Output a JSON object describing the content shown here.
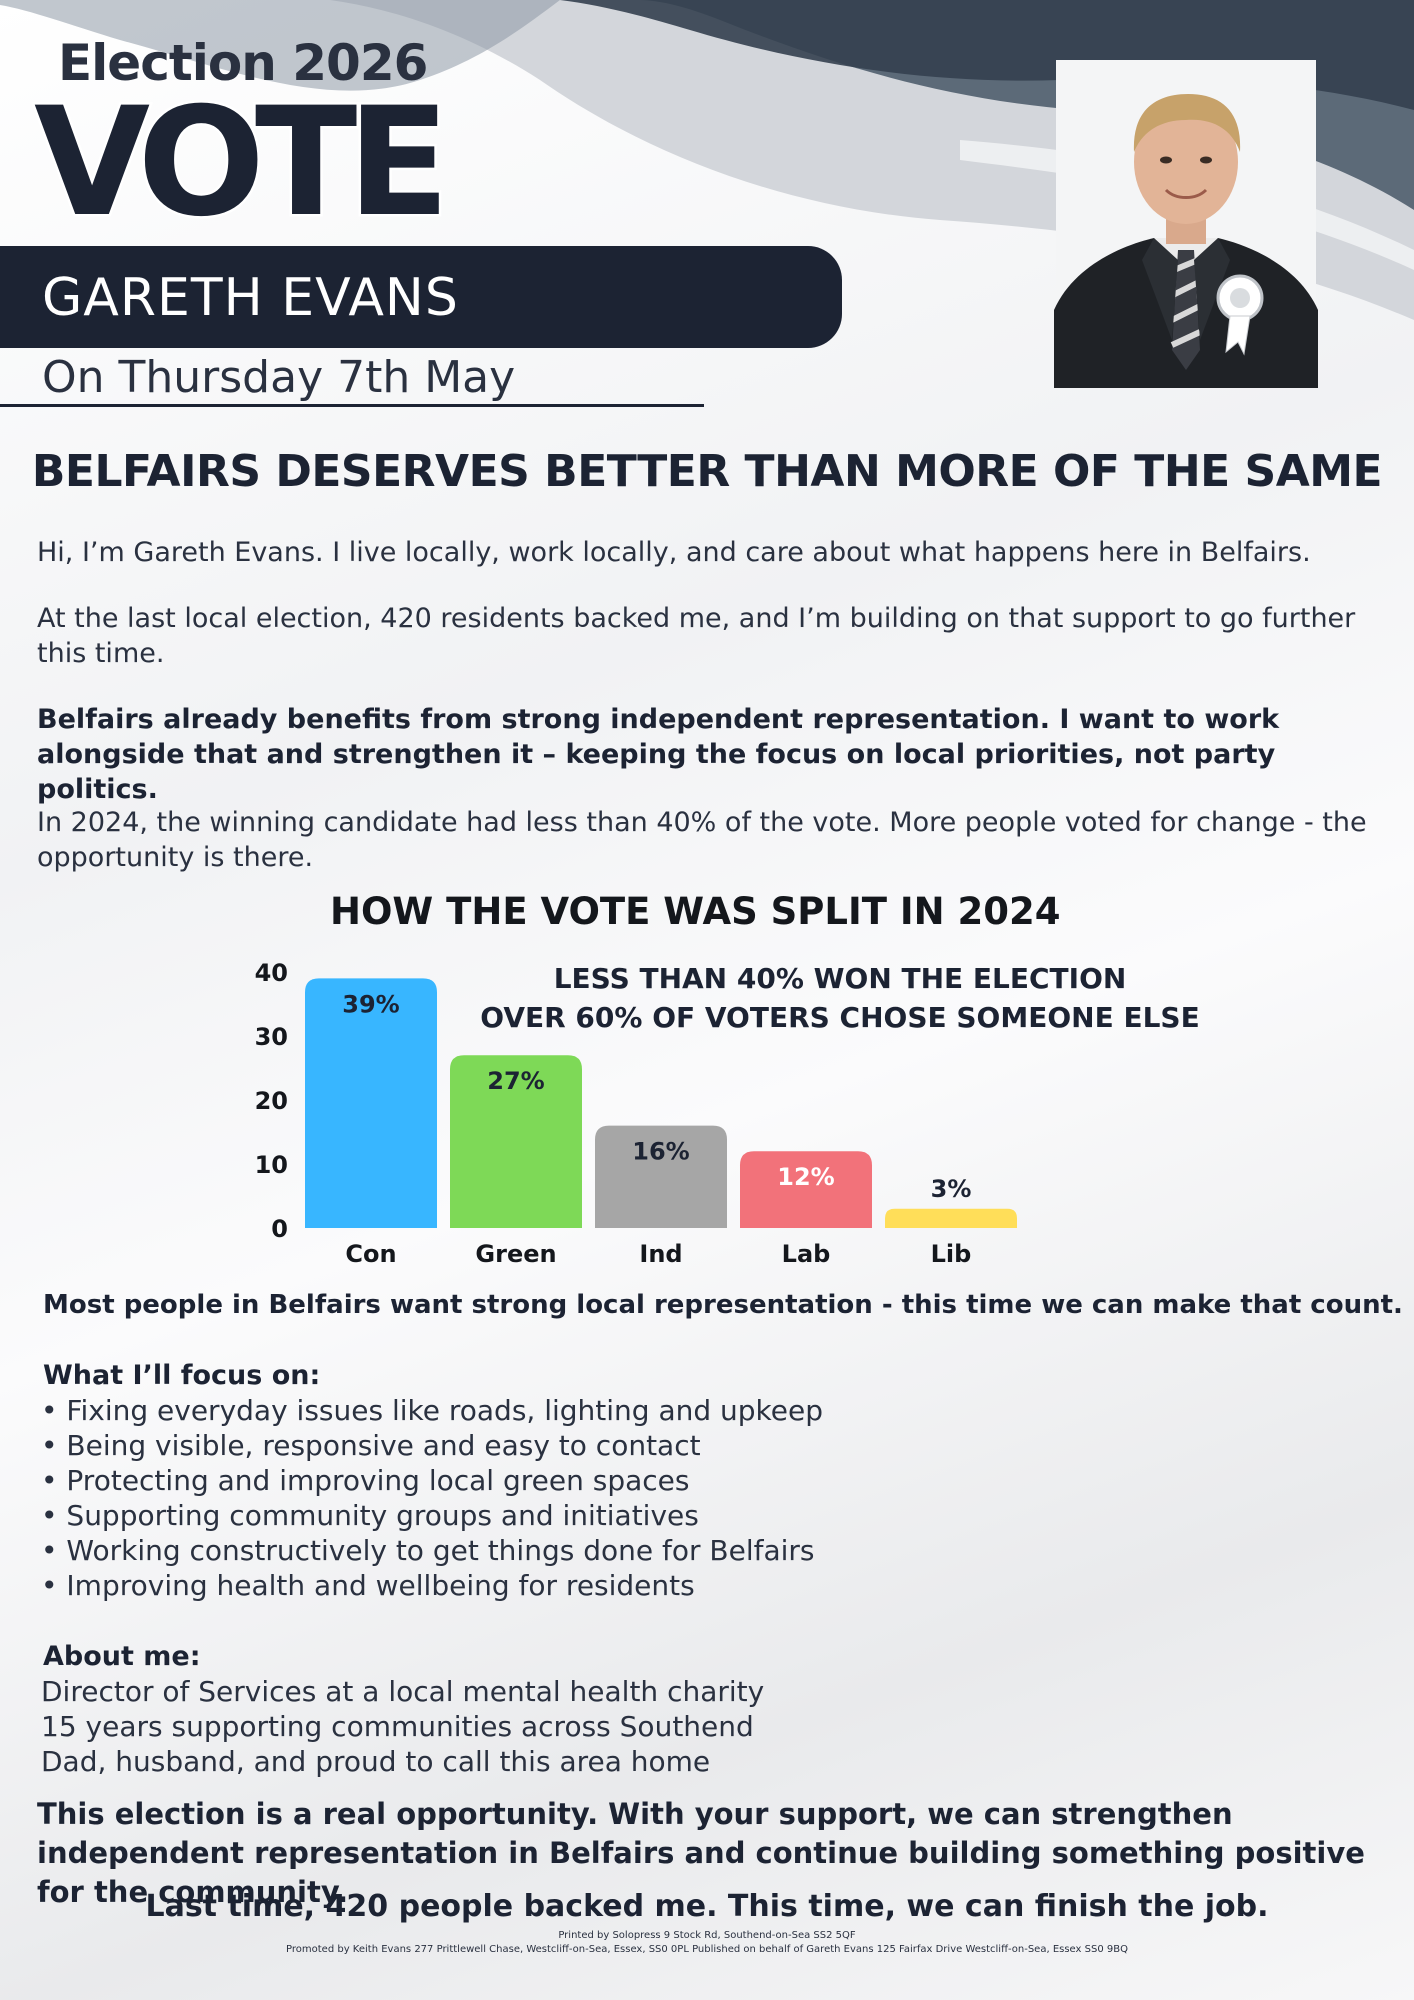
{
  "header": {
    "election_year": "Election 2026",
    "vote_word": "VOTE",
    "candidate_name": "GARETH EVANS",
    "election_date": "On Thursday 7th May"
  },
  "colors": {
    "navy": "#1c2333",
    "bar_con": "#38b6ff",
    "bar_green": "#7ed957",
    "bar_ind": "#a6a6a6",
    "bar_lab": "#f2727a",
    "bar_lib": "#ffde59"
  },
  "headline": "BELFAIRS DESERVES BETTER THAN MORE OF THE SAME",
  "intro": {
    "p1": "Hi, I’m Gareth Evans. I live locally, work locally, and care about what happens here in Belfairs.",
    "p2": "At the last local election, 420 residents backed me, and I’m building on that support to go further this time.",
    "p3": "Belfairs already benefits from strong independent representation. I want to work alongside that and strengthen it – keeping the focus on local priorities, not party politics.",
    "p4": "In 2024, the winning candidate had less than 40% of the vote. More  people voted for change - the opportunity is there."
  },
  "chart_title": "HOW THE VOTE WAS SPLIT IN 2024",
  "chart_annotation": {
    "line1": "LESS THAN 40% WON THE ELECTION",
    "line2": "OVER 60% OF VOTERS CHOSE SOMEONE ELSE"
  },
  "chart_data": {
    "type": "bar",
    "categories": [
      "Con",
      "Green",
      "Ind",
      "Lab",
      "Lib"
    ],
    "values": [
      39,
      27,
      16,
      12,
      3
    ],
    "data_labels": [
      "39%",
      "27%",
      "16%",
      "12%",
      "3%"
    ],
    "ylim": [
      0,
      40
    ],
    "yticks": [
      "0",
      "10",
      "20",
      "30",
      "40"
    ],
    "grid": false,
    "legend": "none"
  },
  "representation_line": "Most people in Belfairs want strong local representation - this time we can make that count.",
  "focus": {
    "heading": "What I’ll focus on:",
    "items": [
      "• Fixing everyday issues like roads, lighting and upkeep",
      "• Being visible, responsive and easy to contact",
      "• Protecting and improving local green spaces",
      "• Supporting community groups and initiatives",
      "• Working constructively to get things done for Belfairs",
      "• Improving health and wellbeing for residents"
    ]
  },
  "about": {
    "heading": "About me:",
    "items": [
      "Director of Services at a local mental health charity",
      "15 years supporting communities across Southend",
      "Dad, husband, and proud to call this area home"
    ]
  },
  "closing": "This election is a real opportunity. With your support, we can strengthen independent representation in Belfairs and continue building something positive for the community.",
  "final_line": "Last time, 420 people backed me. This time, we can finish the job.",
  "imprint": {
    "printed_by": "Printed by Solopress 9 Stock Rd, Southend-on-Sea SS2 5QF",
    "promoted_by": "Promoted by Keith Evans 277 Prittlewell Chase, Westcliff-on-Sea, Essex, SS0 0PL Published on behalf of Gareth Evans 125 Fairfax Drive Westcliff-on-Sea, Essex SS0 9BQ"
  }
}
